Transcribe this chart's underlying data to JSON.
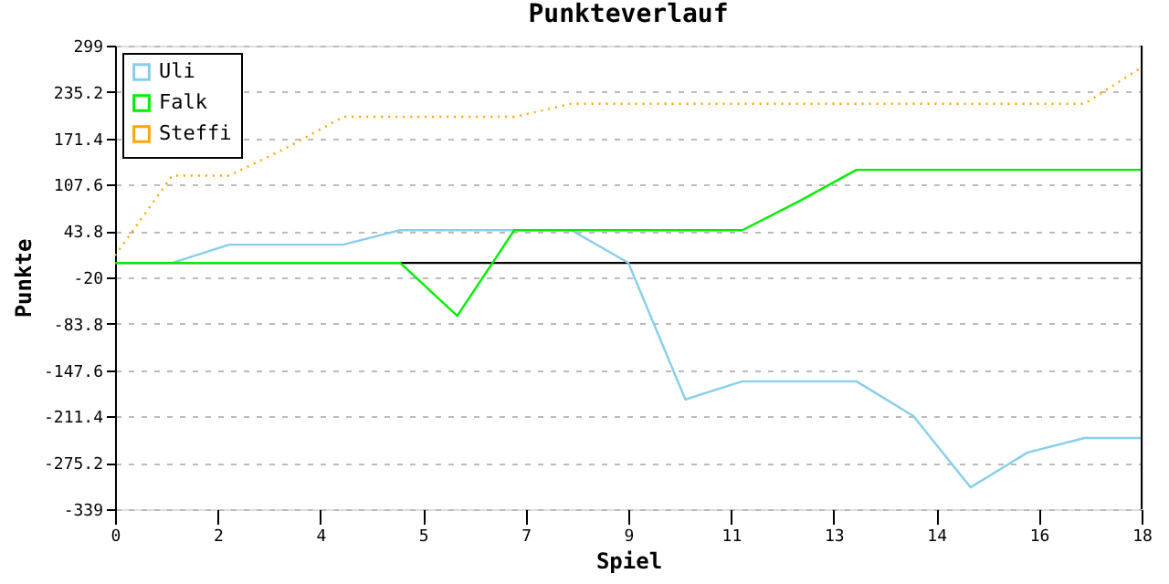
{
  "chart_data": {
    "type": "line",
    "title": "Punkteverlauf",
    "xlabel": "Spiel",
    "ylabel": "Punkte",
    "x": [
      0,
      1,
      2,
      3,
      4,
      5,
      6,
      7,
      8,
      9,
      10,
      11,
      12,
      13,
      14,
      15,
      16,
      17,
      18
    ],
    "series": [
      {
        "name": "Uli",
        "color": "#87ceeb",
        "line_style": "solid",
        "values": [
          0,
          0,
          25,
          25,
          25,
          45,
          45,
          45,
          45,
          0,
          -188,
          -163,
          -163,
          -163,
          -211,
          -309,
          -261,
          -241,
          -241
        ]
      },
      {
        "name": "Falk",
        "color": "#00ee00",
        "line_style": "solid",
        "values": [
          0,
          0,
          0,
          0,
          0,
          0,
          -73,
          45,
          45,
          45,
          45,
          45,
          85,
          128,
          128,
          128,
          128,
          128,
          128
        ]
      },
      {
        "name": "Steffi",
        "color": "#ffa500",
        "line_style": "dotted",
        "values": [
          10,
          120,
          120,
          158,
          201,
          201,
          201,
          201,
          219,
          219,
          219,
          219,
          219,
          219,
          219,
          219,
          219,
          219,
          269
        ]
      }
    ],
    "xlim": [
      0,
      18
    ],
    "xticks": [
      0,
      {
        "value": 1.8,
        "label": "2"
      },
      {
        "value": 3.6,
        "label": "4"
      },
      {
        "value": 5.4,
        "label": "5"
      },
      {
        "value": 7.2,
        "label": "7"
      },
      9,
      {
        "value": 10.8,
        "label": "11"
      },
      {
        "value": 12.6,
        "label": "13"
      },
      {
        "value": 14.4,
        "label": "14"
      },
      {
        "value": 16.2,
        "label": "16"
      },
      18
    ],
    "ylim": [
      -339,
      299
    ],
    "yticks": [
      299,
      235.2,
      171.4,
      107.6,
      43.8,
      -20,
      -83.8,
      -147.6,
      -211.4,
      -275.2,
      -339
    ],
    "ref_lines": [
      {
        "axis": "y",
        "value": 0,
        "color": "#000000"
      }
    ],
    "grid": "y",
    "legend": "top left",
    "marker": "none"
  }
}
